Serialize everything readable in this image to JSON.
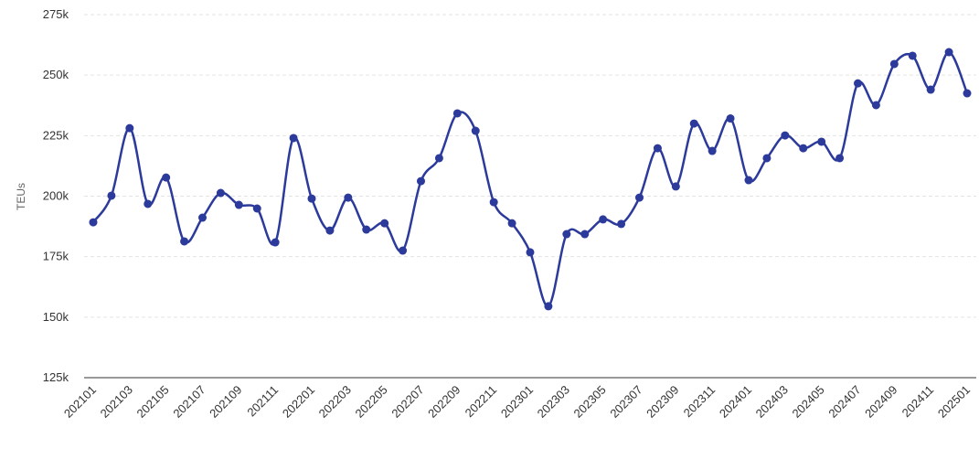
{
  "chart_data": {
    "type": "line",
    "title": "",
    "xlabel": "",
    "ylabel": "TEUs",
    "ylim": [
      125000,
      275000
    ],
    "yticks": [
      125000,
      150000,
      175000,
      200000,
      225000,
      250000,
      275000
    ],
    "ytick_labels": [
      "125k",
      "150k",
      "175k",
      "200k",
      "225k",
      "250k",
      "275k"
    ],
    "grid": true,
    "color": "#2b3a9b",
    "x": [
      "202101",
      "202102",
      "202103",
      "202104",
      "202105",
      "202106",
      "202107",
      "202108",
      "202109",
      "202110",
      "202111",
      "202112",
      "202201",
      "202202",
      "202203",
      "202204",
      "202205",
      "202206",
      "202207",
      "202208",
      "202209",
      "202210",
      "202211",
      "202212",
      "202301",
      "202302",
      "202303",
      "202304",
      "202305",
      "202306",
      "202307",
      "202308",
      "202309",
      "202310",
      "202311",
      "202312",
      "202401",
      "202402",
      "202403",
      "202404",
      "202405",
      "202406",
      "202407",
      "202408",
      "202409",
      "202410",
      "202411",
      "202412",
      "202501"
    ],
    "xtick_labels": [
      "202101",
      "202103",
      "202105",
      "202107",
      "202109",
      "202111",
      "202201",
      "202203",
      "202205",
      "202207",
      "202209",
      "202211",
      "202301",
      "202303",
      "202305",
      "202307",
      "202309",
      "202311",
      "202401",
      "202403",
      "202405",
      "202407",
      "202409",
      "202411",
      "202501"
    ],
    "values": [
      189200,
      200200,
      228100,
      196800,
      207700,
      181300,
      191100,
      201300,
      196400,
      194900,
      180900,
      224000,
      199000,
      185800,
      199400,
      186200,
      188800,
      177500,
      206200,
      215700,
      234200,
      227000,
      197500,
      188800,
      176800,
      154500,
      184300,
      184300,
      190400,
      188500,
      199400,
      219800,
      204000,
      230000,
      218700,
      232100,
      206600,
      215700,
      225100,
      219800,
      222500,
      215700,
      246600,
      237600,
      254600,
      258000,
      244000,
      259500,
      242500
    ]
  }
}
